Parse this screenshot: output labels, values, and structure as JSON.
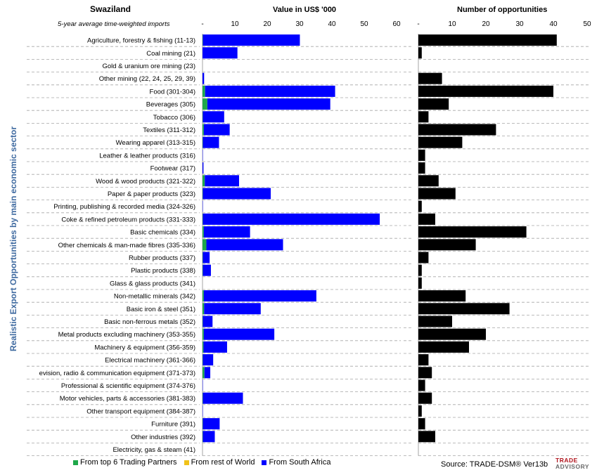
{
  "header": {
    "country": "Swaziland",
    "subtitle": "5-year average time-weighted imports",
    "left_title": "Value in US$ '000",
    "right_title": "Number of opportunities"
  },
  "legend": {
    "items": [
      {
        "label": "From top 6 Trading Partners",
        "color": "#1fa84a"
      },
      {
        "label": "From rest of World",
        "color": "#f0c21a"
      },
      {
        "label": "From South Africa",
        "color": "#0000ff"
      }
    ]
  },
  "footer": {
    "source": "Source: TRADE-DSM®  Ver13b",
    "brand_line1": "TRADE",
    "brand_line2": "ADVISORY"
  },
  "chart_data": [
    {
      "type": "bar",
      "orientation": "horizontal",
      "stacked": true,
      "title": "Value in US$ '000",
      "ylabel": "Realistic Export Opportunities by main economic sector",
      "xlim": [
        0,
        60
      ],
      "xticks": [
        "-",
        "10",
        "20",
        "30",
        "40",
        "50",
        "60"
      ],
      "categories": [
        "Agriculture, forestry & fishing (11-13)",
        "Coal mining (21)",
        "Gold & uranium ore mining (23)",
        "Other mining (22, 24, 25, 29, 39)",
        "Food (301-304)",
        "Beverages (305)",
        "Tobacco (306)",
        "Textiles (311-312)",
        "Wearing apparel (313-315)",
        "Leather & leather products (316)",
        "Footwear (317)",
        "Wood & wood products (321-322)",
        "Paper & paper products (323)",
        "Printing, publishing & recorded media (324-326)",
        "Coke & refined petroleum products (331-333)",
        "Basic chemicals (334)",
        "Other chemicals & man-made fibres (335-336)",
        "Rubber products (337)",
        "Plastic products (338)",
        "Glass & glass products (341)",
        "Non-metallic minerals (342)",
        "Basic iron & steel (351)",
        "Basic non-ferrous metals (352)",
        "Metal products excluding machinery (353-355)",
        "Machinery & equipment (356-359)",
        "Electrical machinery (361-366)",
        "evision, radio & communication equipment (371-373)",
        "Professional & scientific equipment (374-376)",
        "Motor vehicles, parts & accessories (381-383)",
        "Other transport equipment (384-387)",
        "Furniture (391)",
        "Other industries (392)",
        "Electricity, gas & steam (41)"
      ],
      "series": [
        {
          "name": "From top 6 Trading Partners",
          "color": "#1fa84a",
          "values": [
            0.1,
            0,
            0,
            0,
            0.8,
            1.5,
            0.1,
            0.4,
            0.1,
            0,
            0,
            0.7,
            0.1,
            0,
            0.1,
            0.4,
            1.2,
            0.1,
            0.1,
            0,
            0.4,
            0.5,
            0.1,
            0.4,
            0.3,
            0.1,
            0.6,
            0,
            0.1,
            0,
            0.1,
            0.1,
            0
          ]
        },
        {
          "name": "From rest of World",
          "color": "#f0c21a",
          "values": [
            0,
            0,
            0,
            0,
            0,
            0,
            0,
            0,
            0,
            0,
            0,
            0,
            0,
            0,
            0,
            0,
            0,
            0,
            0,
            0,
            0,
            0,
            0,
            0,
            0,
            0,
            0,
            0,
            0,
            0,
            0,
            0,
            0
          ]
        },
        {
          "name": "From South Africa",
          "color": "#0000ff",
          "values": [
            30.0,
            10.8,
            0,
            0.5,
            40.2,
            38.0,
            6.6,
            8.0,
            5.0,
            0.1,
            0.3,
            10.6,
            21.0,
            0.1,
            54.7,
            14.3,
            23.7,
            2.1,
            2.5,
            0,
            34.8,
            17.5,
            3.0,
            21.8,
            7.3,
            3.2,
            1.8,
            0.1,
            12.4,
            0.1,
            5.2,
            3.7,
            0
          ]
        }
      ]
    },
    {
      "type": "bar",
      "orientation": "horizontal",
      "title": "Number of opportunities",
      "xlim": [
        0,
        50
      ],
      "xticks": [
        "-",
        "10",
        "20",
        "30",
        "40",
        "50"
      ],
      "color": "#000000",
      "values": [
        41,
        1,
        0,
        7,
        40,
        9,
        3,
        23,
        13,
        2,
        2,
        6,
        11,
        1,
        5,
        32,
        17,
        3,
        1,
        1,
        14,
        27,
        10,
        20,
        15,
        3,
        4,
        2,
        4,
        1,
        2,
        5,
        0
      ]
    }
  ]
}
